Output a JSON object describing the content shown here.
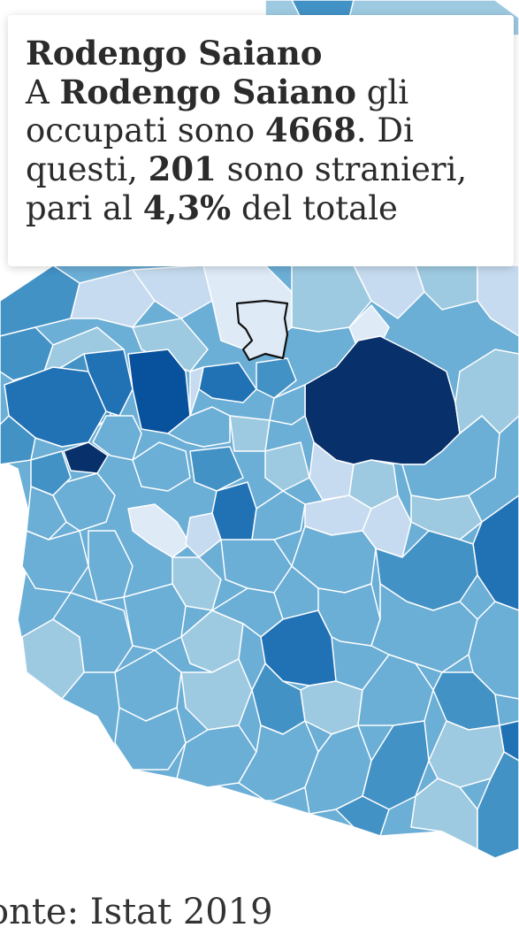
{
  "tooltip": {
    "title": "Rodengo Saiano",
    "text_1": "A ",
    "town": "Rodengo Saiano",
    "text_2": " gli occupati sono ",
    "employed": "4668",
    "text_3": ". Di questi, ",
    "foreigners": "201",
    "text_4": " sono stranieri, pari al ",
    "percent": "4,3%",
    "text_5": " del totale"
  },
  "source": "onte: Istat 2019",
  "palette": {
    "c0": "#deebf7",
    "c1": "#c6dbef",
    "c2": "#9ecae1",
    "c3": "#6baed6",
    "c4": "#4292c6",
    "c5": "#2171b5",
    "c6": "#08519c",
    "c7": "#08306b",
    "border": "#ffffff",
    "highlight_stroke": "#111111"
  },
  "map": {
    "highlighted": "Rodengo Saiano"
  }
}
